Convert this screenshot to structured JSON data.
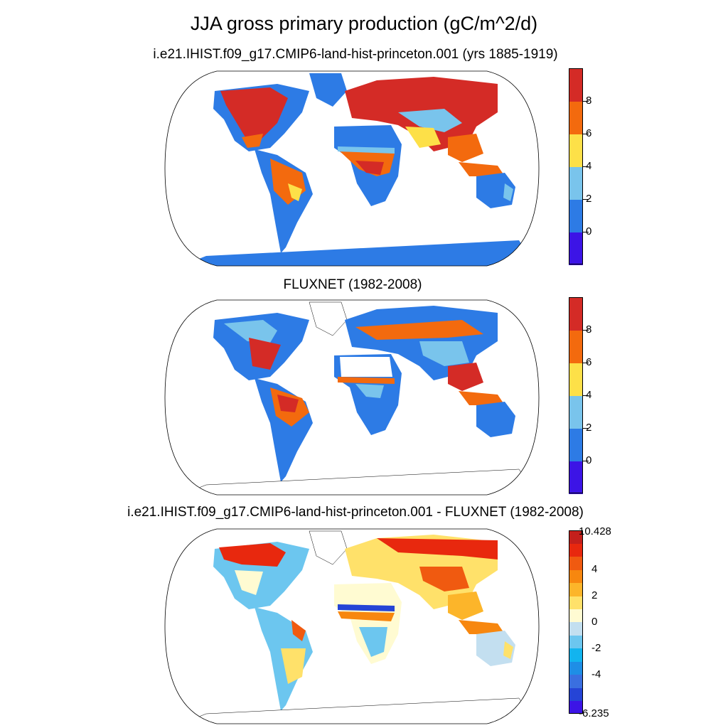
{
  "title": "JJA gross primary production (gC/m^2/d)",
  "panels": [
    {
      "id": "model",
      "title": "i.e21.IHIST.f09_g17.CMIP6-land-hist-princeton.001 (yrs 1885-1919)"
    },
    {
      "id": "obs",
      "title": "FLUXNET (1982-2008)"
    },
    {
      "id": "diff",
      "title": "i.e21.IHIST.f09_g17.CMIP6-land-hist-princeton.001 - FLUXNET (1982-2008)"
    }
  ],
  "colorbar_abs": {
    "colors": [
      "#3c14e6",
      "#2d7be5",
      "#79c4ec",
      "#fde048",
      "#f36a0e",
      "#d42b26"
    ],
    "ticks": [
      "0",
      "2",
      "4",
      "6",
      "8"
    ]
  },
  "colorbar_diff": {
    "colors": [
      "#3c14e6",
      "#2544d6",
      "#3a6fe0",
      "#1e8ee6",
      "#12b4ef",
      "#6cc6ef",
      "#c3dff0",
      "#fffbd2",
      "#ffe16a",
      "#fcb52a",
      "#f7870f",
      "#f05a10",
      "#e8280e",
      "#c4201c"
    ],
    "tick_labels": [
      "10.428",
      "4",
      "2",
      "0",
      "-2",
      "-4",
      "-6.235"
    ]
  }
}
